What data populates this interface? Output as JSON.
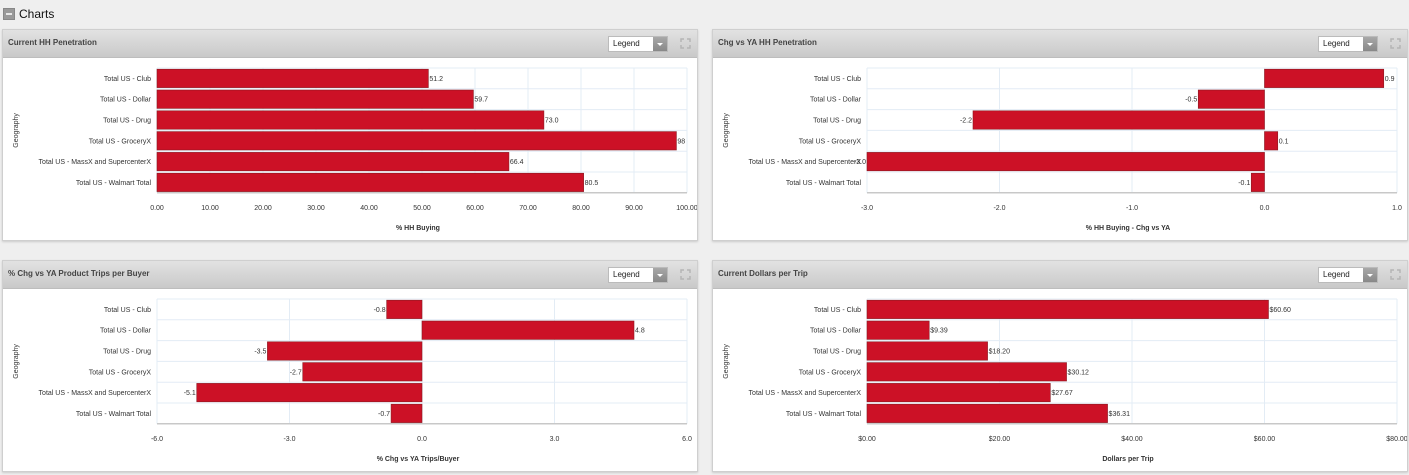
{
  "section": {
    "title": "Charts"
  },
  "panels": [
    {
      "title": "Current HH Penetration",
      "legend_label": "Legend"
    },
    {
      "title": "Chg vs YA HH Penetration",
      "legend_label": "Legend"
    },
    {
      "title": "% Chg vs YA Product Trips per Buyer",
      "legend_label": "Legend"
    },
    {
      "title": "Current Dollars per Trip",
      "legend_label": "Legend"
    }
  ],
  "colors": {
    "bar": "#cc1126",
    "bar_border": "#8a1a22",
    "grid": "#e3ecf5",
    "axis": "#c8c8c8"
  },
  "chart_data": [
    {
      "type": "bar",
      "orientation": "horizontal",
      "title": "Current HH Penetration",
      "categories": [
        "Total US - Club",
        "Total US - Dollar",
        "Total US - Drug",
        "Total US - GroceryX",
        "Total US - MassX and SupercenterX",
        "Total US - Walmart Total"
      ],
      "values": [
        51.2,
        59.7,
        73.0,
        98,
        66.4,
        80.5
      ],
      "data_labels": [
        "51.2",
        "59.7",
        "73.0",
        "98",
        "66.4",
        "80.5"
      ],
      "xlabel": "% HH Buying",
      "ylabel": "Geography",
      "xlim": [
        0,
        100
      ],
      "ticks": [
        0,
        10,
        20,
        30,
        40,
        50,
        60,
        70,
        80,
        90,
        100
      ],
      "tick_labels": [
        "0.00",
        "10.00",
        "20.00",
        "30.00",
        "40.00",
        "50.00",
        "60.00",
        "70.00",
        "80.00",
        "90.00",
        "100.00"
      ],
      "grid": true,
      "legend": "none"
    },
    {
      "type": "bar",
      "orientation": "horizontal",
      "title": "Chg vs YA HH Penetration",
      "categories": [
        "Total US - Club",
        "Total US - Dollar",
        "Total US - Drug",
        "Total US - GroceryX",
        "Total US - MassX and SupercenterX",
        "Total US - Walmart Total"
      ],
      "values": [
        0.9,
        -0.5,
        -2.2,
        0.1,
        -3.0,
        -0.1
      ],
      "data_labels": [
        "0.9",
        "-0.5",
        "-2.2",
        "0.1",
        "-3.0",
        "-0.1"
      ],
      "xlabel": "% HH Buying - Chg vs YA",
      "ylabel": "Geography",
      "xlim": [
        -3.0,
        1.0
      ],
      "ticks": [
        -3,
        -2,
        -1,
        0,
        1
      ],
      "tick_labels": [
        "-3.0",
        "-2.0",
        "-1.0",
        "0.0",
        "1.0"
      ],
      "grid": true,
      "legend": "none"
    },
    {
      "type": "bar",
      "orientation": "horizontal",
      "title": "% Chg vs YA Product Trips per Buyer",
      "categories": [
        "Total US - Club",
        "Total US - Dollar",
        "Total US - Drug",
        "Total US - GroceryX",
        "Total US - MassX and SupercenterX",
        "Total US - Walmart Total"
      ],
      "values": [
        -0.8,
        4.8,
        -3.5,
        -2.7,
        -5.1,
        -0.7
      ],
      "data_labels": [
        "-0.8",
        "4.8",
        "-3.5",
        "-2.7",
        "-5.1",
        "-0.7"
      ],
      "xlabel": "% Chg vs YA Trips/Buyer",
      "ylabel": "Geography",
      "xlim": [
        -6.0,
        6.0
      ],
      "ticks": [
        -6,
        -3,
        0,
        3,
        6
      ],
      "tick_labels": [
        "-6.0",
        "-3.0",
        "0.0",
        "3.0",
        "6.0"
      ],
      "grid": true,
      "legend": "none"
    },
    {
      "type": "bar",
      "orientation": "horizontal",
      "title": "Current Dollars per Trip",
      "categories": [
        "Total US - Club",
        "Total US - Dollar",
        "Total US - Drug",
        "Total US - GroceryX",
        "Total US - MassX and SupercenterX",
        "Total US - Walmart Total"
      ],
      "values": [
        60.6,
        9.39,
        18.2,
        30.12,
        27.67,
        36.31
      ],
      "data_labels": [
        "$60.60",
        "$9.39",
        "$18.20",
        "$30.12",
        "$27.67",
        "$36.31"
      ],
      "xlabel": "Dollars per Trip",
      "ylabel": "Geography",
      "xlim": [
        0,
        80
      ],
      "ticks": [
        0,
        20,
        40,
        60,
        80
      ],
      "tick_labels": [
        "$0.00",
        "$20.00",
        "$40.00",
        "$60.00",
        "$80.00"
      ],
      "grid": true,
      "legend": "none"
    }
  ]
}
